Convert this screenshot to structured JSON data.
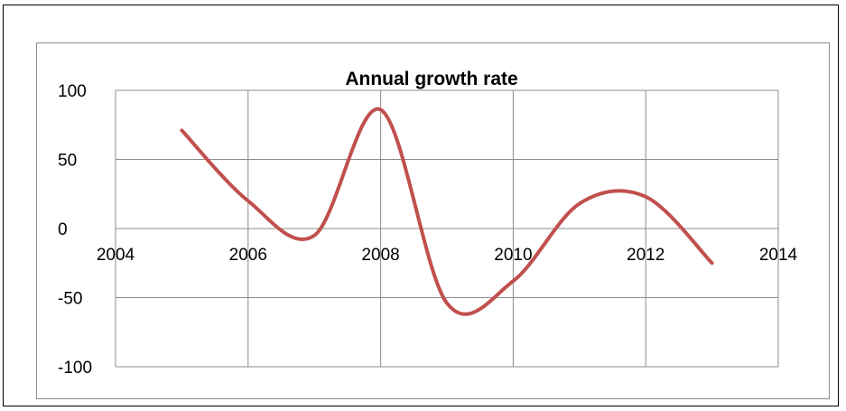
{
  "chart_data": {
    "type": "line",
    "title": "Annual growth rate",
    "xlabel": "",
    "ylabel": "",
    "xlim": [
      2004,
      2014
    ],
    "ylim": [
      -100,
      100
    ],
    "x_ticks": [
      2004,
      2006,
      2008,
      2010,
      2012,
      2014
    ],
    "y_ticks": [
      100,
      50,
      0,
      -50,
      -100
    ],
    "grid": true,
    "smooth": true,
    "series": [
      {
        "color": "#c0504d",
        "x": [
          2005,
          2006,
          2007,
          2008,
          2009,
          2010,
          2011,
          2012,
          2013
        ],
        "y": [
          71,
          20,
          -5,
          86,
          -54,
          -38,
          18,
          23,
          -25
        ]
      }
    ]
  }
}
